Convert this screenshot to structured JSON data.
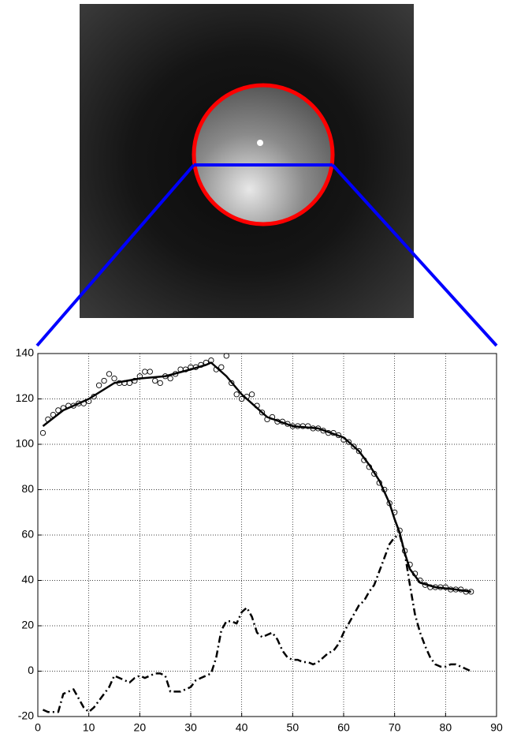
{
  "chart_data": {
    "type": "line",
    "xlim": [
      0,
      90
    ],
    "xticks": [
      0,
      10,
      20,
      30,
      40,
      50,
      60,
      70,
      80,
      90
    ],
    "ylim": [
      -20,
      140
    ],
    "yticks": [
      -20,
      0,
      20,
      40,
      60,
      80,
      100,
      120,
      140
    ],
    "grid": true,
    "series": [
      {
        "style": "markers",
        "color": "#000000",
        "x": [
          1,
          2,
          3,
          4,
          5,
          6,
          7,
          8,
          9,
          10,
          11,
          12,
          13,
          14,
          15,
          16,
          17,
          18,
          19,
          20,
          21,
          22,
          23,
          24,
          25,
          26,
          27,
          28,
          29,
          30,
          31,
          32,
          33,
          34,
          35,
          36,
          37,
          38,
          39,
          40,
          41,
          42,
          43,
          44,
          45,
          46,
          47,
          48,
          49,
          50,
          51,
          52,
          53,
          54,
          55,
          56,
          57,
          58,
          59,
          60,
          61,
          62,
          63,
          64,
          65,
          66,
          67,
          68,
          69,
          70,
          71,
          72,
          73,
          74,
          75,
          76,
          77,
          78,
          79,
          80,
          81,
          82,
          83,
          84,
          85
        ],
        "values": [
          105,
          111,
          113,
          115,
          116,
          117,
          117,
          118,
          118,
          119,
          121,
          126,
          128,
          131,
          129,
          127,
          127,
          127,
          128,
          130,
          132,
          132,
          128,
          127,
          130,
          129,
          131,
          133,
          133,
          134,
          134,
          135,
          136,
          137,
          133,
          134,
          139,
          127,
          122,
          120,
          121,
          122,
          117,
          114,
          111,
          112,
          110,
          110,
          109,
          108,
          108,
          108,
          108,
          107,
          107,
          106,
          105,
          105,
          104,
          102,
          101,
          99,
          97,
          93,
          90,
          87,
          83,
          80,
          74,
          70,
          62,
          53,
          47,
          43,
          40,
          38,
          37,
          37,
          37,
          37,
          36,
          36,
          36,
          35,
          35
        ]
      },
      {
        "style": "solid",
        "color": "#000000",
        "x": [
          1,
          5,
          10,
          15,
          20,
          25,
          30,
          33,
          34,
          35,
          37,
          40,
          45,
          50,
          55,
          60,
          63,
          65,
          67,
          69,
          70,
          71,
          72,
          73,
          75,
          78,
          82,
          85
        ],
        "values": [
          108,
          115,
          120,
          127,
          129,
          130,
          133,
          135,
          136,
          134,
          130,
          122,
          112,
          108,
          107,
          103,
          97,
          91,
          84,
          74,
          67,
          61,
          52,
          45,
          39,
          37,
          36,
          35
        ]
      },
      {
        "style": "dashdot",
        "color": "#000000",
        "x": [
          1,
          2,
          3,
          4,
          5,
          6,
          7,
          8,
          9,
          10,
          11,
          12,
          13,
          14,
          15,
          16,
          17,
          18,
          19,
          20,
          21,
          22,
          23,
          24,
          25,
          26,
          27,
          28,
          29,
          30,
          31,
          32,
          33,
          34,
          35,
          36,
          37,
          38,
          39,
          40,
          41,
          42,
          43,
          44,
          45,
          46,
          47,
          48,
          49,
          50,
          51,
          52,
          53,
          54,
          55,
          56,
          57,
          58,
          59,
          60,
          61,
          62,
          63,
          64,
          65,
          66,
          67,
          68,
          69,
          70,
          71,
          72,
          73,
          74,
          75,
          76,
          77,
          78,
          79,
          80,
          81,
          82,
          83,
          84,
          85
        ],
        "values": [
          -17,
          -18,
          -18,
          -18,
          -10,
          -9,
          -8,
          -12,
          -16,
          -18,
          -16,
          -13,
          -10,
          -7,
          -2,
          -3,
          -4,
          -5,
          -3,
          -2,
          -3,
          -2,
          -1,
          -1,
          -2,
          -9,
          -9,
          -9,
          -8,
          -7,
          -4,
          -3,
          -2,
          -1,
          6,
          18,
          22,
          22,
          21,
          26,
          28,
          24,
          17,
          15,
          16,
          17,
          14,
          9,
          6,
          5,
          5,
          4,
          4,
          3,
          4,
          6,
          8,
          9,
          12,
          17,
          21,
          25,
          29,
          31,
          35,
          38,
          44,
          50,
          56,
          59,
          60,
          52,
          38,
          25,
          17,
          11,
          6,
          3,
          2,
          2,
          3,
          3,
          2,
          1,
          0
        ]
      }
    ]
  }
}
